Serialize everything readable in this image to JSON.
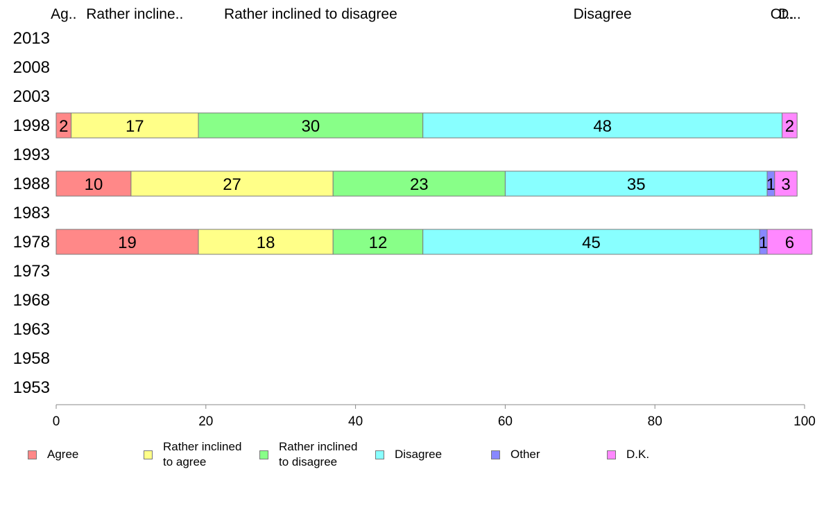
{
  "chart_data": {
    "type": "bar",
    "orientation": "horizontal",
    "stacked": true,
    "categories": [
      "2013",
      "2008",
      "2003",
      "1998",
      "1993",
      "1988",
      "1983",
      "1978",
      "1973",
      "1968",
      "1963",
      "1958",
      "1953"
    ],
    "series": [
      {
        "name": "Agree",
        "color": "#ff8888",
        "values": [
          null,
          null,
          null,
          2,
          null,
          10,
          null,
          19,
          null,
          null,
          null,
          null,
          null
        ]
      },
      {
        "name": "Rather inclined to agree",
        "color": "#ffff88",
        "values": [
          null,
          null,
          null,
          17,
          null,
          27,
          null,
          18,
          null,
          null,
          null,
          null,
          null
        ]
      },
      {
        "name": "Rather inclined to disagree",
        "color": "#88ff88",
        "values": [
          null,
          null,
          null,
          30,
          null,
          23,
          null,
          12,
          null,
          null,
          null,
          null,
          null
        ]
      },
      {
        "name": "Disagree",
        "color": "#88ffff",
        "values": [
          null,
          null,
          null,
          48,
          null,
          35,
          null,
          45,
          null,
          null,
          null,
          null,
          null
        ]
      },
      {
        "name": "Other",
        "color": "#8888ff",
        "values": [
          null,
          null,
          null,
          0,
          null,
          1,
          null,
          1,
          null,
          null,
          null,
          null,
          null
        ]
      },
      {
        "name": "D.K.",
        "color": "#ff88ff",
        "values": [
          null,
          null,
          null,
          2,
          null,
          3,
          null,
          6,
          null,
          null,
          null,
          null,
          null
        ]
      }
    ],
    "data_labels": [
      [
        "",
        "",
        "",
        "2",
        "",
        "10",
        "",
        "19",
        "",
        "",
        "",
        "",
        ""
      ],
      [
        "",
        "",
        "",
        "17",
        "",
        "27",
        "",
        "18",
        "",
        "",
        "",
        "",
        ""
      ],
      [
        "",
        "",
        "",
        "30",
        "",
        "23",
        "",
        "12",
        "",
        "",
        "",
        "",
        ""
      ],
      [
        "",
        "",
        "",
        "48",
        "",
        "35",
        "",
        "45",
        "",
        "",
        "",
        "",
        ""
      ],
      [
        "",
        "",
        "",
        "",
        "",
        "1",
        "",
        "1",
        "",
        "",
        "",
        "",
        ""
      ],
      [
        "",
        "",
        "",
        "2",
        "",
        "3",
        "",
        "6",
        "",
        "",
        "",
        "",
        ""
      ]
    ],
    "top_labels": [
      "Ag..",
      "Rather incline..",
      "Rather inclined to disagree",
      "Disagree",
      "Ot..",
      "D..."
    ],
    "legend_labels": [
      "Agree",
      "Rather inclined\nto agree",
      "Rather inclined\nto disagree",
      "Disagree",
      "Other",
      "D.K."
    ],
    "xlim": [
      0,
      100
    ],
    "xticks": [
      "0",
      "20",
      "40",
      "60",
      "80",
      "100"
    ],
    "grid": false,
    "legend_position": "bottom"
  }
}
